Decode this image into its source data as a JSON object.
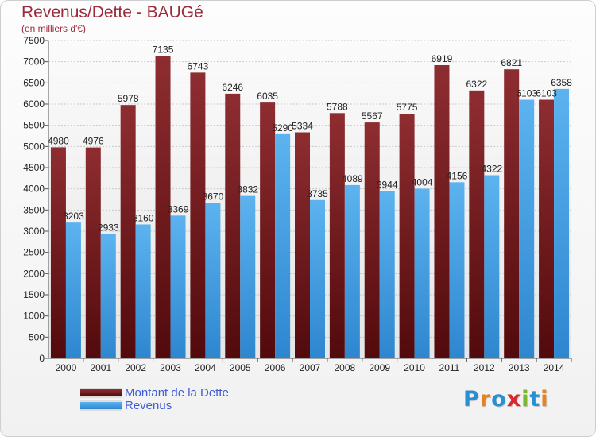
{
  "header": {
    "title": "Revenus/Dette - BAUGé",
    "subtitle": "(en milliers d'€)"
  },
  "chart_data": {
    "type": "bar",
    "categories": [
      "2000",
      "2001",
      "2002",
      "2003",
      "2004",
      "2005",
      "2006",
      "2007",
      "2008",
      "2009",
      "2010",
      "2011",
      "2012",
      "2013",
      "2014"
    ],
    "series": [
      {
        "name": "Montant de la Dette",
        "color": "#7a1f22",
        "values": [
          4980,
          4976,
          5978,
          7135,
          6743,
          6246,
          6035,
          5334,
          5788,
          5567,
          5775,
          6919,
          6322,
          6821,
          6103
        ]
      },
      {
        "name": "Revenus",
        "color": "#4da6e8",
        "values": [
          3203,
          2933,
          3160,
          3369,
          3670,
          3832,
          5290,
          3735,
          4089,
          3944,
          4004,
          4156,
          4322,
          6103,
          6358
        ]
      }
    ],
    "yticks": [
      0,
      500,
      1000,
      1500,
      2000,
      2500,
      3000,
      3500,
      4000,
      4500,
      5000,
      5500,
      6000,
      6500,
      7000,
      7500
    ],
    "ylim": [
      0,
      7500
    ],
    "grid": true,
    "legend": "bottom-left"
  },
  "brand": {
    "letters": [
      {
        "ch": "P",
        "color": "#2a8fd0"
      },
      {
        "ch": "r",
        "color": "#e8821e"
      },
      {
        "ch": "o",
        "color": "#2a8fd0"
      },
      {
        "ch": "x",
        "color": "#d8282c"
      },
      {
        "ch": "i",
        "color": "#7cb82f"
      },
      {
        "ch": "t",
        "color": "#2a8fd0"
      },
      {
        "ch": "i",
        "color": "#e8821e"
      }
    ]
  }
}
